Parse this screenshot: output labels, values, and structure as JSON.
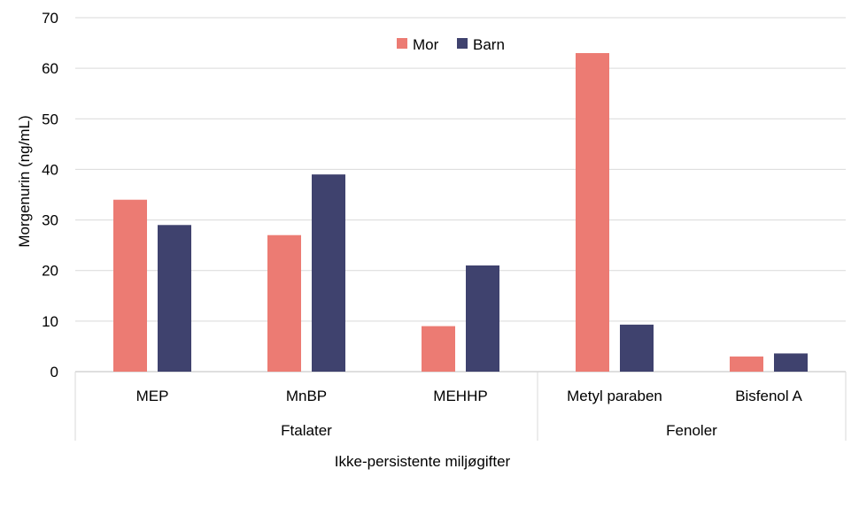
{
  "chart_data": {
    "type": "bar",
    "categories": [
      "MEP",
      "MnBP",
      "MEHHP",
      "Metyl paraben",
      "Bisfenol A"
    ],
    "groups": [
      {
        "label": "Ftalater",
        "categories": [
          "MEP",
          "MnBP",
          "MEHHP"
        ]
      },
      {
        "label": "Fenoler",
        "categories": [
          "Metyl paraben",
          "Bisfenol A"
        ]
      }
    ],
    "series": [
      {
        "name": "Mor",
        "color": "#ec7b73",
        "values": [
          34,
          27,
          9,
          63,
          3
        ]
      },
      {
        "name": "Barn",
        "color": "#3f426e",
        "values": [
          29,
          39,
          21,
          9.3,
          3.6
        ]
      }
    ],
    "ylabel": "Morgenurin (ng/mL)",
    "xlabel": "Ikke-persistente miljøgifter",
    "ylim": [
      0,
      70
    ],
    "yticks": [
      0,
      10,
      20,
      30,
      40,
      50,
      60,
      70
    ],
    "grid": true,
    "legend": "top-center"
  }
}
